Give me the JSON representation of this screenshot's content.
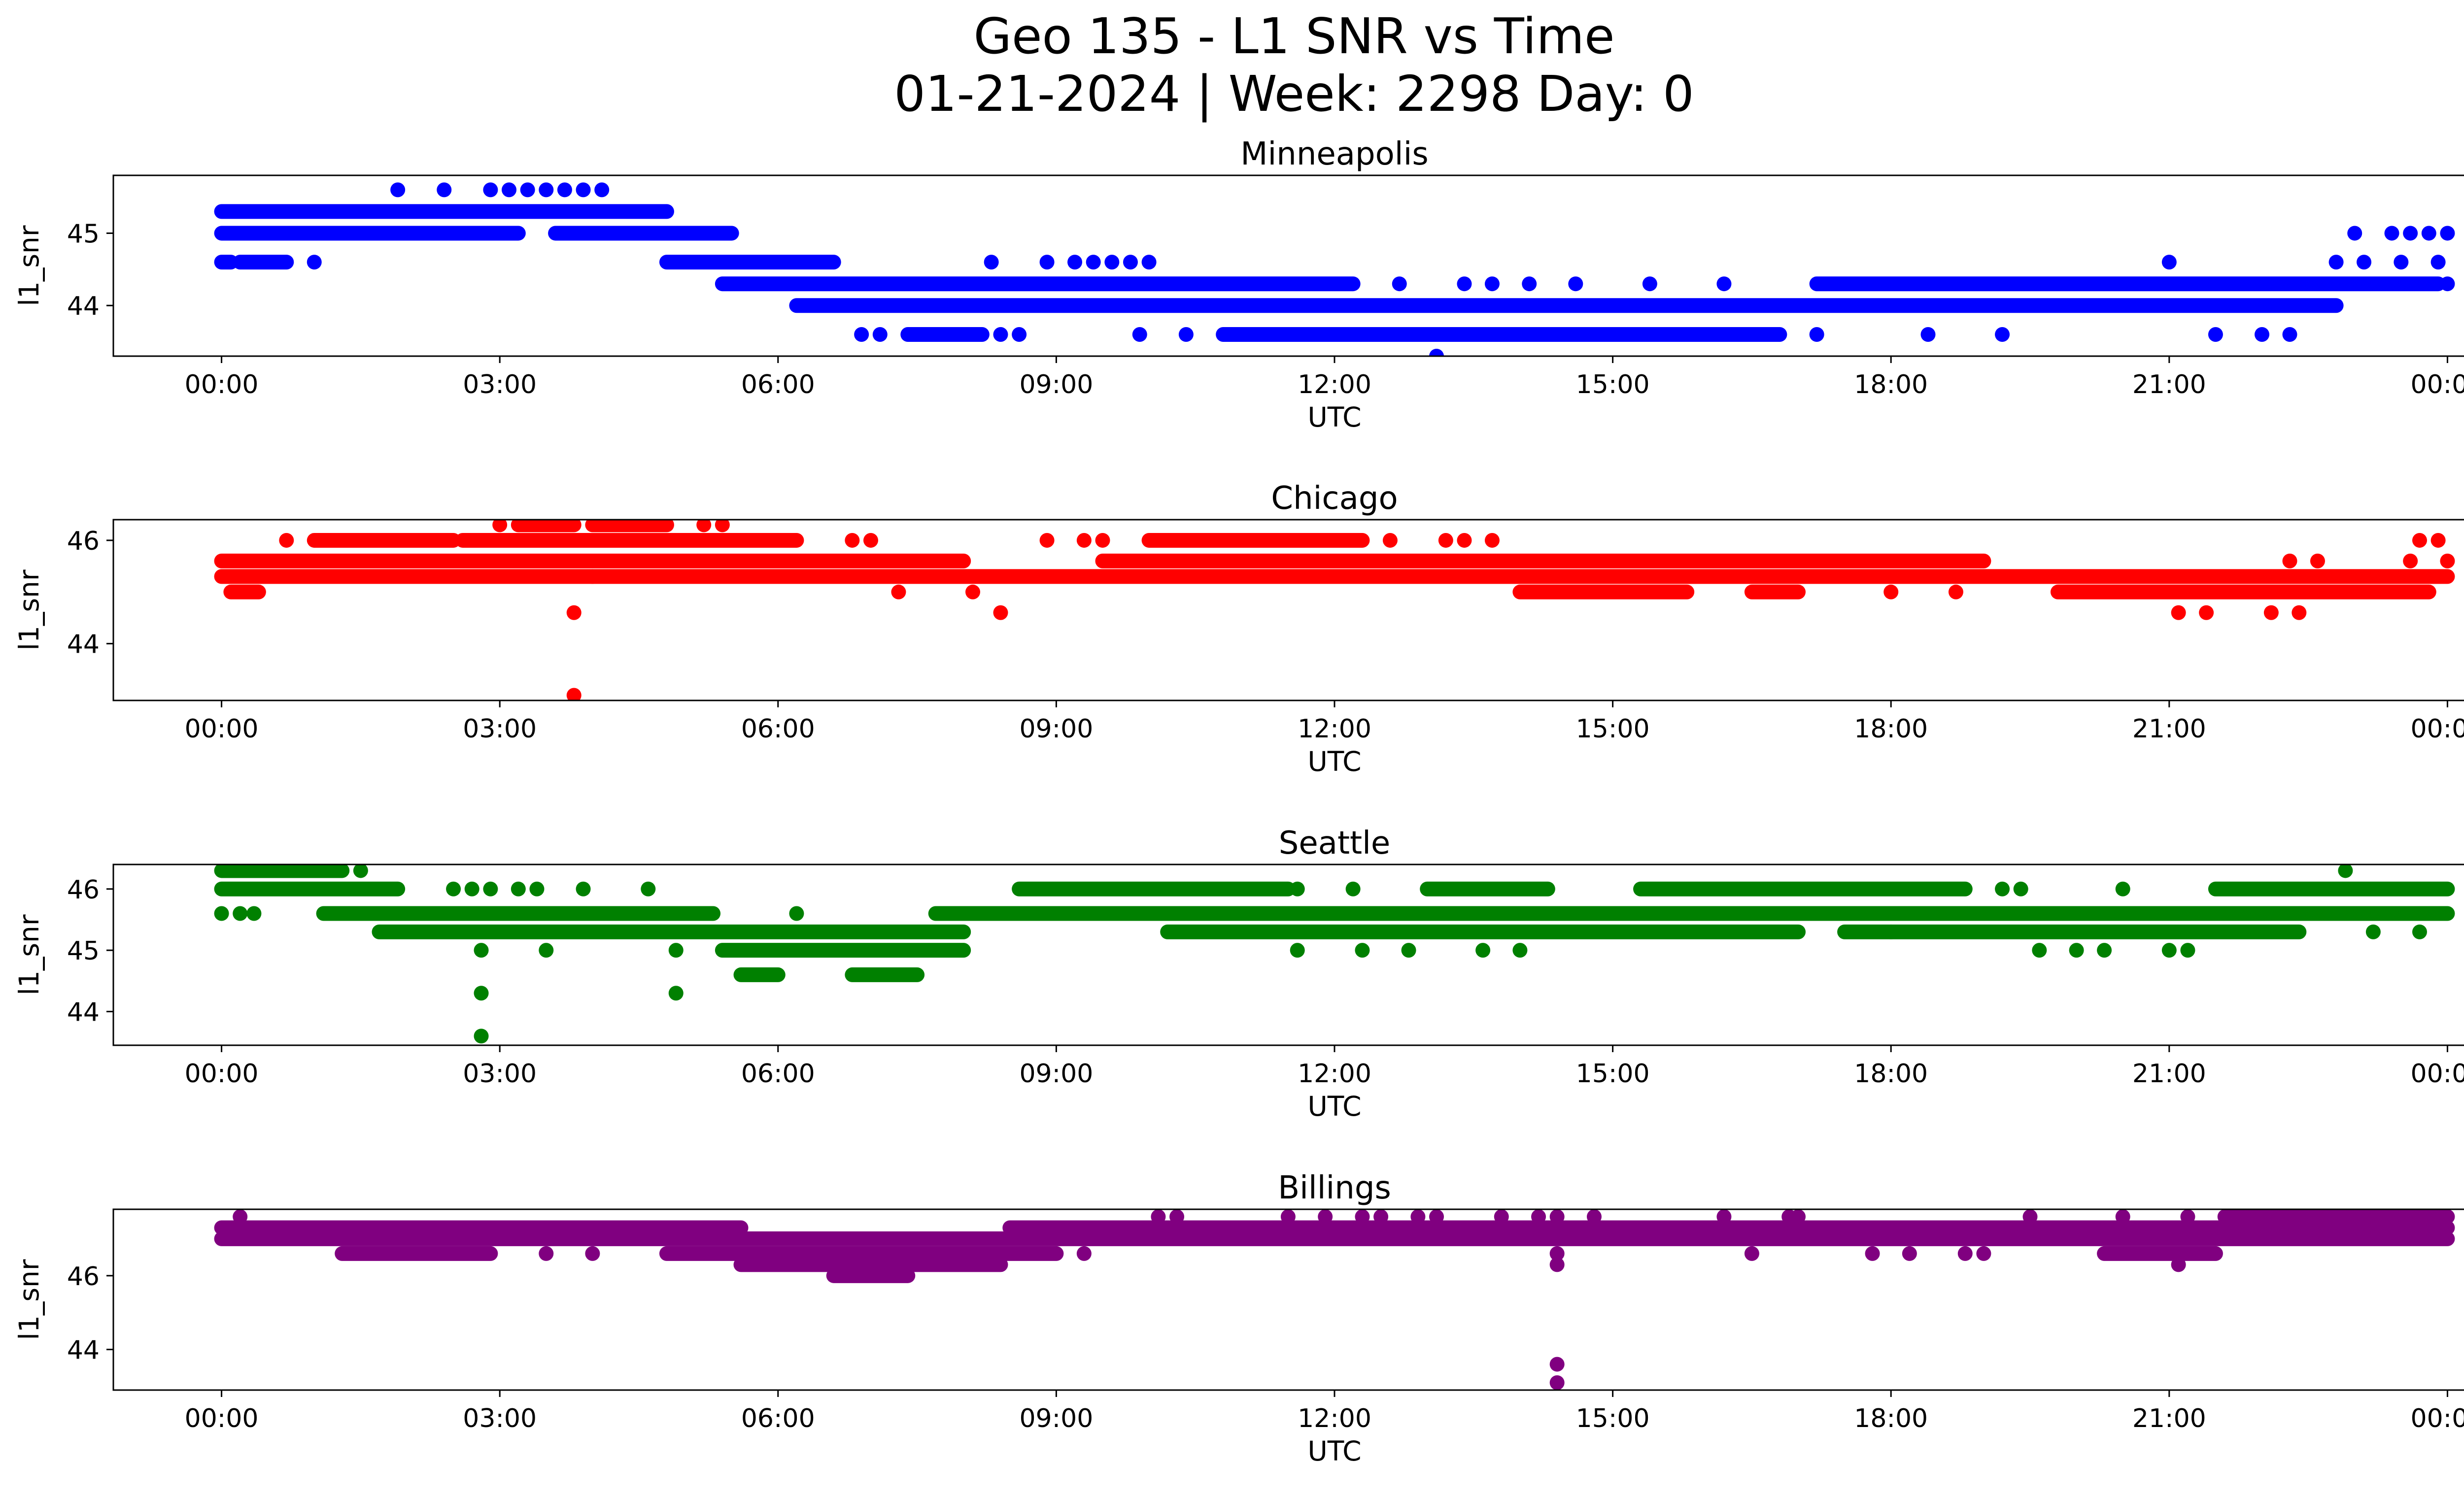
{
  "figure": {
    "title_line1": "Geo 135 - L1 SNR vs Time",
    "title_line2": "01-21-2024 | Week: 2298 Day: 0"
  },
  "chart_data": [
    {
      "type": "scatter",
      "title": "Minneapolis",
      "xlabel": "UTC",
      "ylabel": "l1_snr",
      "color": "#0000ff",
      "xlim": [
        "2024-01-20T22:50",
        "2024-01-22T01:10"
      ],
      "ylim": [
        43.3,
        45.8
      ],
      "xticks": [
        "00:00",
        "03:00",
        "06:00",
        "09:00",
        "12:00",
        "15:00",
        "18:00",
        "21:00",
        "00:00"
      ],
      "yticks": [
        44,
        45
      ],
      "x_unit": "hours since 2024-01-21 00:00 UTC",
      "bands": [
        {
          "y": 45.3,
          "segments": [
            [
              0.0,
              4.8
            ]
          ]
        },
        {
          "y": 45.0,
          "segments": [
            [
              0.0,
              3.2
            ],
            [
              3.6,
              5.5
            ]
          ]
        },
        {
          "y": 44.6,
          "segments": [
            [
              0.0,
              0.1
            ],
            [
              0.2,
              0.7
            ],
            [
              4.8,
              6.6
            ]
          ]
        },
        {
          "y": 44.3,
          "segments": [
            [
              5.4,
              12.2
            ],
            [
              17.2,
              23.9
            ]
          ]
        },
        {
          "y": 44.0,
          "segments": [
            [
              6.2,
              22.8
            ]
          ]
        },
        {
          "y": 43.6,
          "segments": [
            [
              7.4,
              8.2
            ],
            [
              10.8,
              16.8
            ]
          ]
        }
      ],
      "points": [
        {
          "x": 1.0,
          "y": 44.6
        },
        {
          "x": 1.9,
          "y": 45.6
        },
        {
          "x": 2.4,
          "y": 45.6
        },
        {
          "x": 2.9,
          "y": 45.6
        },
        {
          "x": 3.1,
          "y": 45.6
        },
        {
          "x": 3.3,
          "y": 45.6
        },
        {
          "x": 3.5,
          "y": 45.6
        },
        {
          "x": 3.7,
          "y": 45.6
        },
        {
          "x": 3.9,
          "y": 45.6
        },
        {
          "x": 4.1,
          "y": 45.6
        },
        {
          "x": 6.9,
          "y": 43.6
        },
        {
          "x": 7.1,
          "y": 43.6
        },
        {
          "x": 8.4,
          "y": 43.6
        },
        {
          "x": 8.6,
          "y": 43.6
        },
        {
          "x": 8.3,
          "y": 44.6
        },
        {
          "x": 8.9,
          "y": 44.6
        },
        {
          "x": 9.2,
          "y": 44.6
        },
        {
          "x": 9.4,
          "y": 44.6
        },
        {
          "x": 9.6,
          "y": 44.6
        },
        {
          "x": 9.8,
          "y": 44.6
        },
        {
          "x": 10.0,
          "y": 44.6
        },
        {
          "x": 9.9,
          "y": 43.6
        },
        {
          "x": 10.4,
          "y": 43.6
        },
        {
          "x": 12.7,
          "y": 44.3
        },
        {
          "x": 13.4,
          "y": 44.3
        },
        {
          "x": 13.7,
          "y": 44.3
        },
        {
          "x": 14.1,
          "y": 44.3
        },
        {
          "x": 14.6,
          "y": 44.3
        },
        {
          "x": 15.4,
          "y": 44.3
        },
        {
          "x": 16.2,
          "y": 44.3
        },
        {
          "x": 13.1,
          "y": 43.3
        },
        {
          "x": 17.2,
          "y": 43.6
        },
        {
          "x": 18.4,
          "y": 43.6
        },
        {
          "x": 19.2,
          "y": 43.6
        },
        {
          "x": 21.0,
          "y": 44.6
        },
        {
          "x": 21.5,
          "y": 43.6
        },
        {
          "x": 22.0,
          "y": 43.6
        },
        {
          "x": 22.3,
          "y": 43.6
        },
        {
          "x": 22.8,
          "y": 44.6
        },
        {
          "x": 23.1,
          "y": 44.6
        },
        {
          "x": 23.5,
          "y": 44.6
        },
        {
          "x": 23.9,
          "y": 44.6
        },
        {
          "x": 23.0,
          "y": 45.0
        },
        {
          "x": 23.4,
          "y": 45.0
        },
        {
          "x": 23.6,
          "y": 45.0
        },
        {
          "x": 23.8,
          "y": 45.0
        },
        {
          "x": 24.0,
          "y": 45.0
        },
        {
          "x": 24.0,
          "y": 44.3
        }
      ]
    },
    {
      "type": "scatter",
      "title": "Chicago",
      "xlabel": "UTC",
      "ylabel": "l1_snr",
      "color": "#ff0000",
      "xlim": [
        "2024-01-20T22:50",
        "2024-01-22T01:10"
      ],
      "ylim": [
        42.9,
        46.4
      ],
      "xticks": [
        "00:00",
        "03:00",
        "06:00",
        "09:00",
        "12:00",
        "15:00",
        "18:00",
        "21:00",
        "00:00"
      ],
      "yticks": [
        44,
        46
      ],
      "x_unit": "hours since 2024-01-21 00:00 UTC",
      "bands": [
        {
          "y": 45.6,
          "segments": [
            [
              0.0,
              8.0
            ],
            [
              9.5,
              19.0
            ]
          ]
        },
        {
          "y": 45.3,
          "segments": [
            [
              0.0,
              24.0
            ]
          ]
        },
        {
          "y": 45.0,
          "segments": [
            [
              0.1,
              0.4
            ],
            [
              14.0,
              15.8
            ],
            [
              16.5,
              17.0
            ],
            [
              19.8,
              23.8
            ]
          ]
        },
        {
          "y": 46.0,
          "segments": [
            [
              1.0,
              2.5
            ],
            [
              2.6,
              6.2
            ],
            [
              10.0,
              12.3
            ]
          ]
        },
        {
          "y": 46.3,
          "segments": [
            [
              3.2,
              3.8
            ],
            [
              4.0,
              4.8
            ]
          ]
        }
      ],
      "points": [
        {
          "x": 0.7,
          "y": 46.0
        },
        {
          "x": 3.0,
          "y": 46.3
        },
        {
          "x": 3.8,
          "y": 44.6
        },
        {
          "x": 3.8,
          "y": 43.0
        },
        {
          "x": 4.0,
          "y": 45.3
        },
        {
          "x": 5.2,
          "y": 46.3
        },
        {
          "x": 5.4,
          "y": 46.3
        },
        {
          "x": 6.8,
          "y": 46.0
        },
        {
          "x": 7.0,
          "y": 46.0
        },
        {
          "x": 7.3,
          "y": 45.0
        },
        {
          "x": 8.1,
          "y": 45.0
        },
        {
          "x": 8.4,
          "y": 44.6
        },
        {
          "x": 8.9,
          "y": 46.0
        },
        {
          "x": 9.3,
          "y": 46.0
        },
        {
          "x": 9.5,
          "y": 46.0
        },
        {
          "x": 12.6,
          "y": 46.0
        },
        {
          "x": 13.2,
          "y": 46.0
        },
        {
          "x": 13.4,
          "y": 46.0
        },
        {
          "x": 13.7,
          "y": 46.0
        },
        {
          "x": 18.0,
          "y": 45.0
        },
        {
          "x": 18.7,
          "y": 45.0
        },
        {
          "x": 21.1,
          "y": 44.6
        },
        {
          "x": 21.4,
          "y": 44.6
        },
        {
          "x": 22.1,
          "y": 44.6
        },
        {
          "x": 22.4,
          "y": 44.6
        },
        {
          "x": 22.3,
          "y": 45.6
        },
        {
          "x": 22.6,
          "y": 45.6
        },
        {
          "x": 23.6,
          "y": 45.6
        },
        {
          "x": 23.7,
          "y": 46.0
        },
        {
          "x": 23.9,
          "y": 46.0
        },
        {
          "x": 24.0,
          "y": 45.6
        }
      ]
    },
    {
      "type": "scatter",
      "title": "Seattle",
      "xlabel": "UTC",
      "ylabel": "l1_snr",
      "color": "#008000",
      "xlim": [
        "2024-01-20T22:50",
        "2024-01-22T01:10"
      ],
      "ylim": [
        43.45,
        46.4
      ],
      "xticks": [
        "00:00",
        "03:00",
        "06:00",
        "09:00",
        "12:00",
        "15:00",
        "18:00",
        "21:00",
        "00:00"
      ],
      "yticks": [
        44,
        45,
        46
      ],
      "x_unit": "hours since 2024-01-21 00:00 UTC",
      "bands": [
        {
          "y": 46.3,
          "segments": [
            [
              0.0,
              1.3
            ]
          ]
        },
        {
          "y": 46.0,
          "segments": [
            [
              0.0,
              1.9
            ],
            [
              8.6,
              11.5
            ],
            [
              13.0,
              14.3
            ],
            [
              15.3,
              18.8
            ],
            [
              21.5,
              24.0
            ]
          ]
        },
        {
          "y": 45.6,
          "segments": [
            [
              1.1,
              5.3
            ],
            [
              7.7,
              24.0
            ]
          ]
        },
        {
          "y": 45.3,
          "segments": [
            [
              1.7,
              8.0
            ],
            [
              10.2,
              17.0
            ],
            [
              17.5,
              22.4
            ]
          ]
        },
        {
          "y": 45.0,
          "segments": [
            [
              5.4,
              8.0
            ]
          ]
        },
        {
          "y": 44.6,
          "segments": [
            [
              5.6,
              6.0
            ],
            [
              6.8,
              7.5
            ]
          ]
        }
      ],
      "points": [
        {
          "x": 0.0,
          "y": 45.6
        },
        {
          "x": 0.2,
          "y": 45.6
        },
        {
          "x": 0.35,
          "y": 45.6
        },
        {
          "x": 1.5,
          "y": 46.3
        },
        {
          "x": 2.5,
          "y": 46.0
        },
        {
          "x": 2.7,
          "y": 46.0
        },
        {
          "x": 2.9,
          "y": 46.0
        },
        {
          "x": 3.2,
          "y": 46.0
        },
        {
          "x": 3.4,
          "y": 46.0
        },
        {
          "x": 2.8,
          "y": 45.0
        },
        {
          "x": 2.8,
          "y": 44.3
        },
        {
          "x": 2.8,
          "y": 43.6
        },
        {
          "x": 3.5,
          "y": 45.0
        },
        {
          "x": 3.9,
          "y": 46.0
        },
        {
          "x": 4.6,
          "y": 46.0
        },
        {
          "x": 4.9,
          "y": 45.0
        },
        {
          "x": 4.9,
          "y": 44.3
        },
        {
          "x": 6.2,
          "y": 45.6
        },
        {
          "x": 11.6,
          "y": 45.0
        },
        {
          "x": 11.6,
          "y": 46.0
        },
        {
          "x": 12.2,
          "y": 46.0
        },
        {
          "x": 12.3,
          "y": 45.0
        },
        {
          "x": 12.8,
          "y": 45.0
        },
        {
          "x": 13.6,
          "y": 45.0
        },
        {
          "x": 14.0,
          "y": 45.0
        },
        {
          "x": 18.0,
          "y": 45.3
        },
        {
          "x": 19.2,
          "y": 46.0
        },
        {
          "x": 19.4,
          "y": 46.0
        },
        {
          "x": 19.6,
          "y": 45.0
        },
        {
          "x": 20.0,
          "y": 45.0
        },
        {
          "x": 20.3,
          "y": 45.0
        },
        {
          "x": 20.5,
          "y": 46.0
        },
        {
          "x": 21.0,
          "y": 45.0
        },
        {
          "x": 21.2,
          "y": 45.0
        },
        {
          "x": 22.9,
          "y": 46.3
        },
        {
          "x": 23.2,
          "y": 45.3
        },
        {
          "x": 23.7,
          "y": 45.3
        }
      ]
    },
    {
      "type": "scatter",
      "title": "Billings",
      "xlabel": "UTC",
      "ylabel": "l1_snr",
      "color": "#800080",
      "xlim": [
        "2024-01-20T22:50",
        "2024-01-22T01:10"
      ],
      "ylim": [
        42.9,
        47.8
      ],
      "xticks": [
        "00:00",
        "03:00",
        "06:00",
        "09:00",
        "12:00",
        "15:00",
        "18:00",
        "21:00",
        "00:00"
      ],
      "yticks": [
        44,
        46
      ],
      "x_unit": "hours since 2024-01-21 00:00 UTC",
      "bands": [
        {
          "y": 47.3,
          "segments": [
            [
              0.0,
              5.6
            ],
            [
              8.5,
              24.0
            ]
          ]
        },
        {
          "y": 47.0,
          "segments": [
            [
              0.0,
              24.0
            ]
          ]
        },
        {
          "y": 46.6,
          "segments": [
            [
              1.3,
              2.9
            ],
            [
              4.8,
              9.0
            ],
            [
              20.3,
              21.5
            ]
          ]
        },
        {
          "y": 46.3,
          "segments": [
            [
              5.6,
              8.4
            ]
          ]
        },
        {
          "y": 46.0,
          "segments": [
            [
              6.6,
              7.4
            ]
          ]
        },
        {
          "y": 47.6,
          "segments": [
            [
              21.6,
              24.0
            ]
          ]
        }
      ],
      "points": [
        {
          "x": 0.2,
          "y": 47.6
        },
        {
          "x": 3.5,
          "y": 46.6
        },
        {
          "x": 4.0,
          "y": 46.6
        },
        {
          "x": 9.3,
          "y": 46.6
        },
        {
          "x": 10.1,
          "y": 47.6
        },
        {
          "x": 10.3,
          "y": 47.6
        },
        {
          "x": 11.5,
          "y": 47.6
        },
        {
          "x": 11.9,
          "y": 47.6
        },
        {
          "x": 12.3,
          "y": 47.6
        },
        {
          "x": 12.5,
          "y": 47.6
        },
        {
          "x": 12.9,
          "y": 47.6
        },
        {
          "x": 13.1,
          "y": 47.6
        },
        {
          "x": 13.8,
          "y": 47.6
        },
        {
          "x": 14.2,
          "y": 47.6
        },
        {
          "x": 14.4,
          "y": 47.6
        },
        {
          "x": 14.8,
          "y": 47.6
        },
        {
          "x": 14.4,
          "y": 46.6
        },
        {
          "x": 14.4,
          "y": 46.3
        },
        {
          "x": 14.4,
          "y": 43.6
        },
        {
          "x": 14.4,
          "y": 43.1
        },
        {
          "x": 16.5,
          "y": 46.6
        },
        {
          "x": 16.2,
          "y": 47.6
        },
        {
          "x": 16.9,
          "y": 47.6
        },
        {
          "x": 17.0,
          "y": 47.6
        },
        {
          "x": 17.8,
          "y": 46.6
        },
        {
          "x": 18.2,
          "y": 46.6
        },
        {
          "x": 18.8,
          "y": 46.6
        },
        {
          "x": 19.0,
          "y": 46.6
        },
        {
          "x": 19.5,
          "y": 47.6
        },
        {
          "x": 20.5,
          "y": 47.6
        },
        {
          "x": 21.1,
          "y": 46.3
        },
        {
          "x": 21.2,
          "y": 47.6
        }
      ]
    }
  ]
}
